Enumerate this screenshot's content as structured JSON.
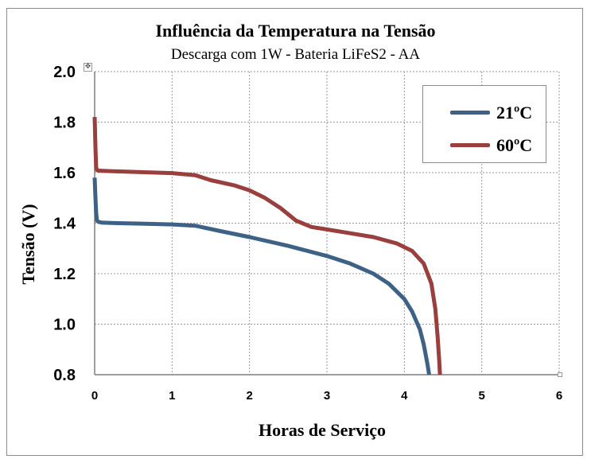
{
  "chart_data": {
    "type": "line",
    "title": "Influência da Temperatura na Tensão",
    "subtitle": "Descarga com 1W - Bateria LiFeS2 - AA",
    "xlabel": "Horas de Serviço",
    "ylabel": "Tensão (V)",
    "xlim": [
      0,
      6
    ],
    "ylim": [
      0.8,
      2.0
    ],
    "x_ticks": [
      "0",
      "1",
      "2",
      "3",
      "4",
      "5",
      "6"
    ],
    "y_ticks": [
      "0.8",
      "1.0",
      "1.2",
      "1.4",
      "1.6",
      "1.8",
      "2.0"
    ],
    "grid": true,
    "legend_position": "top-right",
    "series": [
      {
        "name": "21ºC",
        "color": "#3d6286",
        "x": [
          0.0,
          0.01,
          0.02,
          0.03,
          0.05,
          0.1,
          0.3,
          0.6,
          1.0,
          1.3,
          1.6,
          2.0,
          2.5,
          3.0,
          3.3,
          3.6,
          3.8,
          4.0,
          4.1,
          4.2,
          4.25,
          4.3,
          4.32
        ],
        "y": [
          1.58,
          1.5,
          1.44,
          1.41,
          1.405,
          1.402,
          1.4,
          1.398,
          1.395,
          1.39,
          1.37,
          1.345,
          1.31,
          1.27,
          1.24,
          1.2,
          1.16,
          1.1,
          1.05,
          0.98,
          0.92,
          0.84,
          0.8
        ]
      },
      {
        "name": "60ºC",
        "color": "#993f3e",
        "x": [
          0.0,
          0.01,
          0.02,
          0.03,
          0.05,
          0.2,
          0.6,
          1.0,
          1.3,
          1.5,
          1.8,
          2.0,
          2.2,
          2.4,
          2.6,
          2.8,
          3.0,
          3.3,
          3.6,
          3.9,
          4.1,
          4.25,
          4.35,
          4.4,
          4.43,
          4.45,
          4.46
        ],
        "y": [
          1.82,
          1.7,
          1.62,
          1.61,
          1.608,
          1.606,
          1.602,
          1.598,
          1.59,
          1.57,
          1.55,
          1.53,
          1.5,
          1.46,
          1.41,
          1.385,
          1.375,
          1.36,
          1.345,
          1.32,
          1.29,
          1.24,
          1.16,
          1.06,
          0.95,
          0.86,
          0.8
        ]
      }
    ]
  }
}
